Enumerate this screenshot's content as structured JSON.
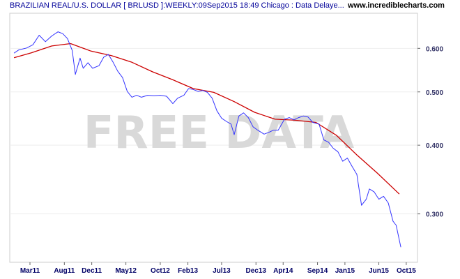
{
  "header": {
    "title": "BRAZILIAN REAL/U.S. DOLLAR [ BRLUSD ]:WEEKLY:09Sep2015 18:49 Chicago : Data Delaye...",
    "site": "www.incrediblecharts.com"
  },
  "watermark": "FREE DATA",
  "chart_data": {
    "type": "line",
    "title": "BRAZILIAN REAL/U.S. DOLLAR [ BRLUSD ]:WEEKLY:09Sep2015 18:49 Chicago : Data Delaye...",
    "xlabel": "",
    "ylabel": "",
    "y_scale": "log",
    "ylim": [
      0.245,
      0.695
    ],
    "x_tick_labels": [
      "Mar11",
      "Aug11",
      "Dec11",
      "May12",
      "Oct12",
      "Feb13",
      "Jul13",
      "Dec13",
      "Apr14",
      "Sep14",
      "Jan15",
      "Jun15",
      "Oct15"
    ],
    "y_ticks": [
      0.6,
      0.5,
      0.4,
      0.3
    ],
    "y_tick_labels": [
      "0.600",
      "0.500",
      "0.400",
      "0.300"
    ],
    "grid": true,
    "legend": "none",
    "series": [
      {
        "color": "#3333ff",
        "points": [
          [
            "2010-12-20",
            0.588
          ],
          [
            "2011-01-10",
            0.596
          ],
          [
            "2011-02-14",
            0.601
          ],
          [
            "2011-03-14",
            0.609
          ],
          [
            "2011-04-11",
            0.634
          ],
          [
            "2011-05-09",
            0.617
          ],
          [
            "2011-06-06",
            0.632
          ],
          [
            "2011-07-04",
            0.643
          ],
          [
            "2011-07-25",
            0.638
          ],
          [
            "2011-08-15",
            0.625
          ],
          [
            "2011-09-05",
            0.595
          ],
          [
            "2011-09-19",
            0.538
          ],
          [
            "2011-10-10",
            0.576
          ],
          [
            "2011-10-24",
            0.552
          ],
          [
            "2011-11-14",
            0.565
          ],
          [
            "2011-12-05",
            0.552
          ],
          [
            "2012-01-02",
            0.558
          ],
          [
            "2012-01-23",
            0.578
          ],
          [
            "2012-02-13",
            0.585
          ],
          [
            "2012-03-05",
            0.566
          ],
          [
            "2012-03-26",
            0.545
          ],
          [
            "2012-04-16",
            0.531
          ],
          [
            "2012-05-07",
            0.501
          ],
          [
            "2012-05-28",
            0.489
          ],
          [
            "2012-06-18",
            0.493
          ],
          [
            "2012-07-09",
            0.489
          ],
          [
            "2012-08-06",
            0.493
          ],
          [
            "2012-09-03",
            0.492
          ],
          [
            "2012-10-01",
            0.493
          ],
          [
            "2012-10-29",
            0.491
          ],
          [
            "2012-11-26",
            0.476
          ],
          [
            "2012-12-17",
            0.487
          ],
          [
            "2013-01-14",
            0.493
          ],
          [
            "2013-02-04",
            0.507
          ],
          [
            "2013-02-25",
            0.505
          ],
          [
            "2013-03-18",
            0.501
          ],
          [
            "2013-04-08",
            0.503
          ],
          [
            "2013-04-29",
            0.499
          ],
          [
            "2013-05-20",
            0.487
          ],
          [
            "2013-06-10",
            0.462
          ],
          [
            "2013-07-01",
            0.448
          ],
          [
            "2013-07-22",
            0.442
          ],
          [
            "2013-08-12",
            0.437
          ],
          [
            "2013-08-26",
            0.418
          ],
          [
            "2013-09-16",
            0.452
          ],
          [
            "2013-10-07",
            0.458
          ],
          [
            "2013-10-28",
            0.449
          ],
          [
            "2013-11-18",
            0.432
          ],
          [
            "2013-12-09",
            0.426
          ],
          [
            "2014-01-06",
            0.419
          ],
          [
            "2014-01-27",
            0.422
          ],
          [
            "2014-02-17",
            0.426
          ],
          [
            "2014-03-10",
            0.426
          ],
          [
            "2014-04-07",
            0.446
          ],
          [
            "2014-04-28",
            0.449
          ],
          [
            "2014-05-19",
            0.445
          ],
          [
            "2014-06-09",
            0.449
          ],
          [
            "2014-06-30",
            0.452
          ],
          [
            "2014-07-21",
            0.45
          ],
          [
            "2014-08-11",
            0.44
          ],
          [
            "2014-09-08",
            0.437
          ],
          [
            "2014-09-29",
            0.409
          ],
          [
            "2014-10-20",
            0.405
          ],
          [
            "2014-11-10",
            0.395
          ],
          [
            "2014-12-01",
            0.389
          ],
          [
            "2014-12-22",
            0.374
          ],
          [
            "2015-01-12",
            0.379
          ],
          [
            "2015-02-02",
            0.366
          ],
          [
            "2015-02-23",
            0.354
          ],
          [
            "2015-03-16",
            0.311
          ],
          [
            "2015-04-06",
            0.319
          ],
          [
            "2015-04-20",
            0.333
          ],
          [
            "2015-05-11",
            0.329
          ],
          [
            "2015-06-01",
            0.319
          ],
          [
            "2015-06-22",
            0.323
          ],
          [
            "2015-07-13",
            0.314
          ],
          [
            "2015-08-03",
            0.291
          ],
          [
            "2015-08-17",
            0.286
          ],
          [
            "2015-09-07",
            0.261
          ]
        ]
      },
      {
        "color": "#cc0000",
        "points": [
          [
            "2010-12-20",
            0.577
          ],
          [
            "2011-03-07",
            0.589
          ],
          [
            "2011-06-06",
            0.606
          ],
          [
            "2011-08-29",
            0.612
          ],
          [
            "2011-11-28",
            0.593
          ],
          [
            "2012-02-27",
            0.582
          ],
          [
            "2012-05-28",
            0.566
          ],
          [
            "2012-08-27",
            0.544
          ],
          [
            "2012-11-26",
            0.526
          ],
          [
            "2013-02-25",
            0.507
          ],
          [
            "2013-05-27",
            0.499
          ],
          [
            "2013-08-26",
            0.48
          ],
          [
            "2013-11-25",
            0.459
          ],
          [
            "2014-02-24",
            0.446
          ],
          [
            "2014-05-26",
            0.444
          ],
          [
            "2014-08-25",
            0.44
          ],
          [
            "2014-11-24",
            0.417
          ],
          [
            "2015-02-23",
            0.384
          ],
          [
            "2015-05-25",
            0.356
          ],
          [
            "2015-08-31",
            0.326
          ]
        ]
      }
    ]
  }
}
